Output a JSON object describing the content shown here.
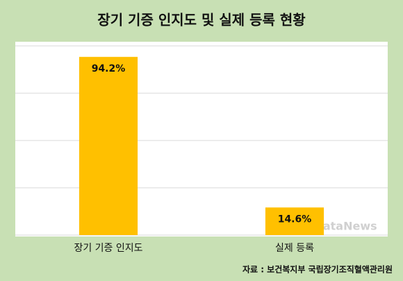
{
  "chart_data": {
    "type": "bar",
    "title": "장기 기증 인지도 및 실제 등록 현황",
    "categories": [
      "장기 기증 인지도",
      "실제 등록"
    ],
    "values": [
      94.2,
      14.6
    ],
    "value_labels": [
      "94.2%",
      "14.6%"
    ],
    "color": "#ffc000",
    "ylim": [
      0,
      100
    ],
    "yticks": [
      0,
      25,
      50,
      75,
      100
    ],
    "grid": true,
    "source": "자료 : 보건복지부 국립장기조직혈액관리원",
    "watermark": "dataNews"
  }
}
